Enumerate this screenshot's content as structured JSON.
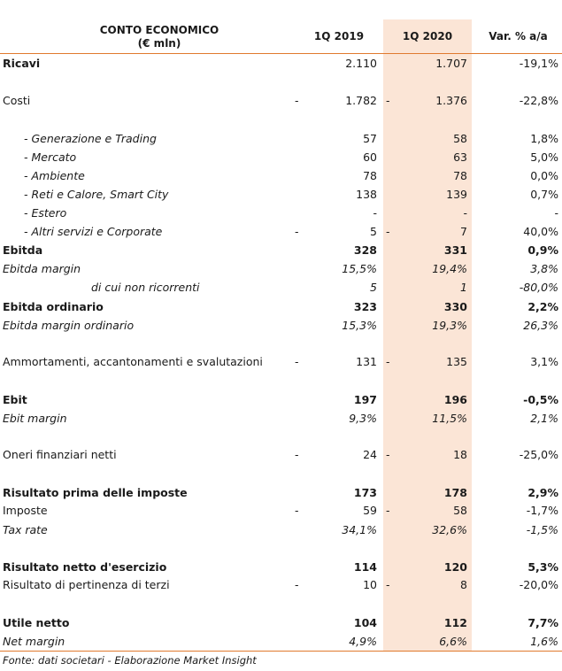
{
  "header": {
    "title_line1": "CONTO ECONOMICO",
    "title_line2": "(€ mln)",
    "col1": "1Q 2019",
    "col2": "1Q 2020",
    "col3": "Var. % a/a"
  },
  "rows": [
    {
      "label": "Ricavi",
      "d1": "",
      "v1": "2.110",
      "d2": "",
      "v2": "1.707",
      "v3": "-19,1%"
    },
    {
      "label": "Costi",
      "d1": "-",
      "v1": "1.782",
      "d2": "-",
      "v2": "1.376",
      "v3": "-22,8%"
    },
    {
      "label": "- Generazione e Trading",
      "d1": "",
      "v1": "57",
      "d2": "",
      "v2": "58",
      "v3": "1,8%"
    },
    {
      "label": "- Mercato",
      "d1": "",
      "v1": "60",
      "d2": "",
      "v2": "63",
      "v3": "5,0%"
    },
    {
      "label": "- Ambiente",
      "d1": "",
      "v1": "78",
      "d2": "",
      "v2": "78",
      "v3": "0,0%"
    },
    {
      "label": "- Reti e Calore, Smart City",
      "d1": "",
      "v1": "138",
      "d2": "",
      "v2": "139",
      "v3": "0,7%"
    },
    {
      "label": "- Estero",
      "d1": "",
      "v1": "-",
      "d2": "",
      "v2": "-",
      "v3": "-"
    },
    {
      "label": "- Altri servizi e Corporate",
      "d1": "-",
      "v1": "5",
      "d2": "-",
      "v2": "7",
      "v3": "40,0%"
    },
    {
      "label": "Ebitda",
      "d1": "",
      "v1": "328",
      "d2": "",
      "v2": "331",
      "v3": "0,9%"
    },
    {
      "label": "Ebitda margin",
      "d1": "",
      "v1": "15,5%",
      "d2": "",
      "v2": "19,4%",
      "v3": "3,8%"
    },
    {
      "label": "di cui non ricorrenti",
      "d1": "",
      "v1": "5",
      "d2": "",
      "v2": "1",
      "v3": "-80,0%"
    },
    {
      "label": "Ebitda ordinario",
      "d1": "",
      "v1": "323",
      "d2": "",
      "v2": "330",
      "v3": "2,2%"
    },
    {
      "label": "Ebitda margin ordinario",
      "d1": "",
      "v1": "15,3%",
      "d2": "",
      "v2": "19,3%",
      "v3": "26,3%"
    },
    {
      "label": "Ammortamenti, accantonamenti e svalutazioni",
      "d1": "-",
      "v1": "131",
      "d2": "-",
      "v2": "135",
      "v3": "3,1%"
    },
    {
      "label": "Ebit",
      "d1": "",
      "v1": "197",
      "d2": "",
      "v2": "196",
      "v3": "-0,5%"
    },
    {
      "label": "Ebit margin",
      "d1": "",
      "v1": "9,3%",
      "d2": "",
      "v2": "11,5%",
      "v3": "2,1%"
    },
    {
      "label": "Oneri finanziari netti",
      "d1": "-",
      "v1": "24",
      "d2": "-",
      "v2": "18",
      "v3": "-25,0%"
    },
    {
      "label": "Risultato prima delle imposte",
      "d1": "",
      "v1": "173",
      "d2": "",
      "v2": "178",
      "v3": "2,9%"
    },
    {
      "label": "Imposte",
      "d1": "-",
      "v1": "59",
      "d2": "-",
      "v2": "58",
      "v3": "-1,7%"
    },
    {
      "label": "Tax rate",
      "d1": "",
      "v1": "34,1%",
      "d2": "",
      "v2": "32,6%",
      "v3": "-1,5%"
    },
    {
      "label": "Risultato netto d'esercizio",
      "d1": "",
      "v1": "114",
      "d2": "",
      "v2": "120",
      "v3": "5,3%"
    },
    {
      "label": "Risultato di pertinenza di terzi",
      "d1": "-",
      "v1": "10",
      "d2": "-",
      "v2": "8",
      "v3": "-20,0%"
    },
    {
      "label": "Utile netto",
      "d1": "",
      "v1": "104",
      "d2": "",
      "v2": "112",
      "v3": "7,7%"
    },
    {
      "label": "Net margin",
      "d1": "",
      "v1": "4,9%",
      "d2": "",
      "v2": "6,6%",
      "v3": "1,6%"
    }
  ],
  "footer": "Fonte: dati societari  - Elaborazione Market Insight",
  "colors": {
    "highlight": "#fbe5d6",
    "accent_line": "#e07a2e"
  }
}
